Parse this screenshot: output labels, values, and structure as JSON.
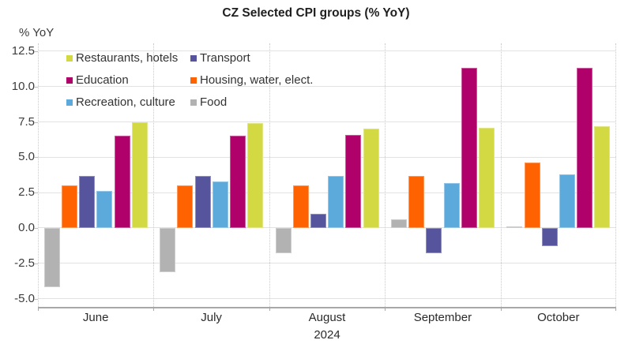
{
  "chart_data": {
    "type": "bar",
    "title": "CZ Selected CPI groups (% YoY)",
    "y_axis_label": "% YoY",
    "x_axis_year": "2024",
    "categories": [
      "June",
      "July",
      "August",
      "September",
      "October"
    ],
    "series": [
      {
        "name": "Food",
        "color": "#b2b2b2",
        "values": [
          -4.2,
          -3.1,
          -1.8,
          0.6,
          0.1
        ]
      },
      {
        "name": "Housing, water, elect.",
        "color": "#ff6200",
        "values": [
          3.0,
          3.0,
          3.0,
          3.7,
          4.6
        ]
      },
      {
        "name": "Transport",
        "color": "#55549d",
        "values": [
          3.7,
          3.7,
          1.0,
          -1.8,
          -1.3
        ]
      },
      {
        "name": "Recreation, culture",
        "color": "#5ca9dc",
        "values": [
          2.6,
          3.3,
          3.7,
          3.2,
          3.8
        ]
      },
      {
        "name": "Education",
        "color": "#b00069",
        "values": [
          6.5,
          6.5,
          6.6,
          11.3,
          11.3
        ]
      },
      {
        "name": "Restaurants, hotels",
        "color": "#d2d943",
        "values": [
          7.5,
          7.4,
          7.0,
          7.1,
          7.2
        ]
      }
    ],
    "legend": {
      "position": "top-left",
      "items": [
        {
          "label": "Restaurants, hotels",
          "color": "#d2d943"
        },
        {
          "label": "Transport",
          "color": "#55549d"
        },
        {
          "label": "Education",
          "color": "#b00069"
        },
        {
          "label": "Housing, water, elect.",
          "color": "#ff6200"
        },
        {
          "label": "Recreation, culture",
          "color": "#5ca9dc"
        },
        {
          "label": "Food",
          "color": "#b2b2b2"
        }
      ]
    },
    "y_tick_labels": [
      "12.5",
      "10.0",
      "7.5",
      "5.0",
      "2.5",
      "0.0",
      "-2.5",
      "-5.0"
    ],
    "ylim": [
      -5.58,
      13.05
    ],
    "grid": true
  }
}
